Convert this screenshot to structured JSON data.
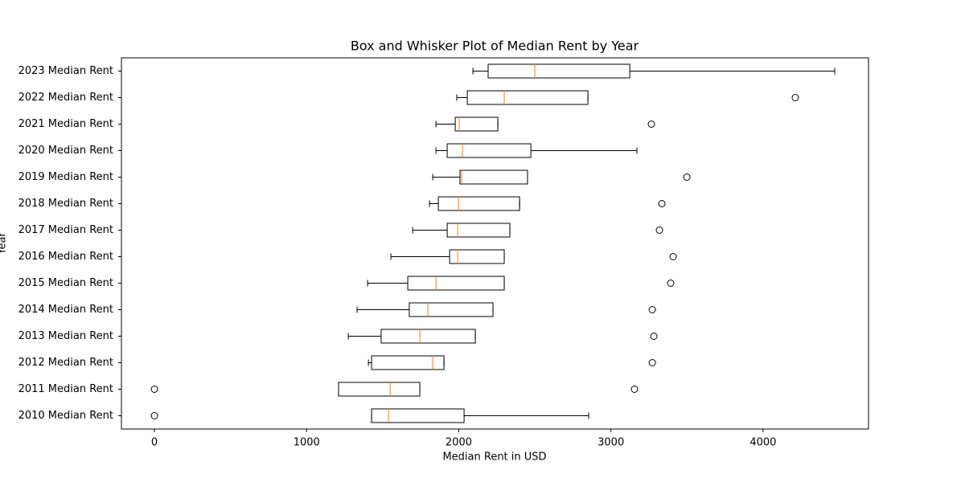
{
  "chart_data": {
    "type": "boxplot",
    "orientation": "horizontal",
    "title": "Box and Whisker Plot of Median Rent by Year",
    "xlabel": "Median Rent in USD",
    "ylabel": "Year",
    "categories": [
      "2010 Median Rent",
      "2011 Median Rent",
      "2012 Median Rent",
      "2013 Median Rent",
      "2014 Median Rent",
      "2015 Median Rent",
      "2016 Median Rent",
      "2017 Median Rent",
      "2018 Median Rent",
      "2019 Median Rent",
      "2020 Median Rent",
      "2021 Median Rent",
      "2022 Median Rent",
      "2023 Median Rent"
    ],
    "boxes": [
      {
        "low": 1427,
        "q1": 1427,
        "median": 1538,
        "q3": 2035,
        "high": 2854,
        "outliers": [
          0
        ]
      },
      {
        "low": 1210,
        "q1": 1210,
        "median": 1549,
        "q3": 1744,
        "high": 1744,
        "outliers": [
          0,
          3155
        ]
      },
      {
        "low": 1406,
        "q1": 1427,
        "median": 1829,
        "q3": 1903,
        "high": 1903,
        "outliers": [
          3272
        ]
      },
      {
        "low": 1274,
        "q1": 1490,
        "median": 1744,
        "q3": 2109,
        "high": 2109,
        "outliers": [
          3282
        ]
      },
      {
        "low": 1332,
        "q1": 1675,
        "median": 1797,
        "q3": 2225,
        "high": 2225,
        "outliers": [
          3272
        ]
      },
      {
        "low": 1401,
        "q1": 1665,
        "median": 1850,
        "q3": 2299,
        "high": 2299,
        "outliers": [
          3393
        ]
      },
      {
        "low": 1554,
        "q1": 1940,
        "median": 1993,
        "q3": 2299,
        "high": 2299,
        "outliers": [
          3409
        ]
      },
      {
        "low": 1697,
        "q1": 1924,
        "median": 1993,
        "q3": 2336,
        "high": 2336,
        "outliers": [
          3319
        ]
      },
      {
        "low": 1808,
        "q1": 1866,
        "median": 1998,
        "q3": 2400,
        "high": 2400,
        "outliers": [
          3335
        ]
      },
      {
        "low": 1829,
        "q1": 2008,
        "median": 2019,
        "q3": 2452,
        "high": 2452,
        "outliers": [
          3499
        ]
      },
      {
        "low": 1850,
        "q1": 1924,
        "median": 2024,
        "q3": 2474,
        "high": 3171,
        "outliers": []
      },
      {
        "low": 1850,
        "q1": 1977,
        "median": 2003,
        "q3": 2257,
        "high": 2257,
        "outliers": [
          3266
        ]
      },
      {
        "low": 1987,
        "q1": 2056,
        "median": 2299,
        "q3": 2849,
        "high": 2849,
        "outliers": [
          4212
        ]
      },
      {
        "low": 2093,
        "q1": 2193,
        "median": 2500,
        "q3": 3124,
        "high": 4471,
        "outliers": []
      }
    ],
    "box_color": "#000000",
    "median_color": "#ff7f0e",
    "xlim": [
      -217,
      4693
    ],
    "xticks": [
      0,
      1000,
      2000,
      3000,
      4000
    ]
  }
}
